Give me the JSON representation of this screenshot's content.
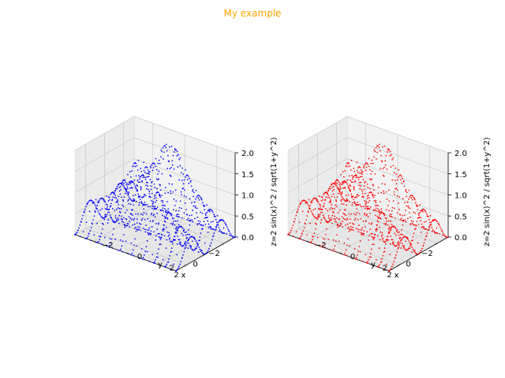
{
  "figure": {
    "suptitle": "My example",
    "suptitle_color": "#ffa500"
  },
  "chart_data": [
    {
      "type": "scatter3d",
      "color": "#0000ff",
      "xlabel": "x",
      "ylabel": "y",
      "zlabel": "z=2 sin(x)^2 / sqrt(1+y^2)",
      "xlim": [
        -3.14,
        3.14
      ],
      "ylim": [
        -3.14,
        3.14
      ],
      "zlim": [
        0,
        2
      ],
      "xticks": [
        "−2",
        "0",
        "2"
      ],
      "yticks": [
        "−2",
        "0",
        "2"
      ],
      "zticks": [
        "0.0",
        "0.5",
        "1.0",
        "1.5",
        "2.0"
      ],
      "grid": true,
      "formula": "z = 2*sin(x)^2/sqrt(1+y^2)"
    },
    {
      "type": "scatter3d",
      "color": "#ff0000",
      "xlabel": "x",
      "ylabel": "y",
      "zlabel": "z=2 sin(x)^2 / sqrt(1+y^2)",
      "xlim": [
        -3.14,
        3.14
      ],
      "ylim": [
        -3.14,
        3.14
      ],
      "zlim": [
        0,
        2
      ],
      "xticks": [
        "−2",
        "0",
        "2"
      ],
      "yticks": [
        "−2",
        "0",
        "2"
      ],
      "zticks": [
        "0.0",
        "0.5",
        "1.0",
        "1.5",
        "2.0"
      ],
      "grid": true,
      "formula": "z = 2*sin(x)^2/sqrt(1+y^2)"
    }
  ]
}
